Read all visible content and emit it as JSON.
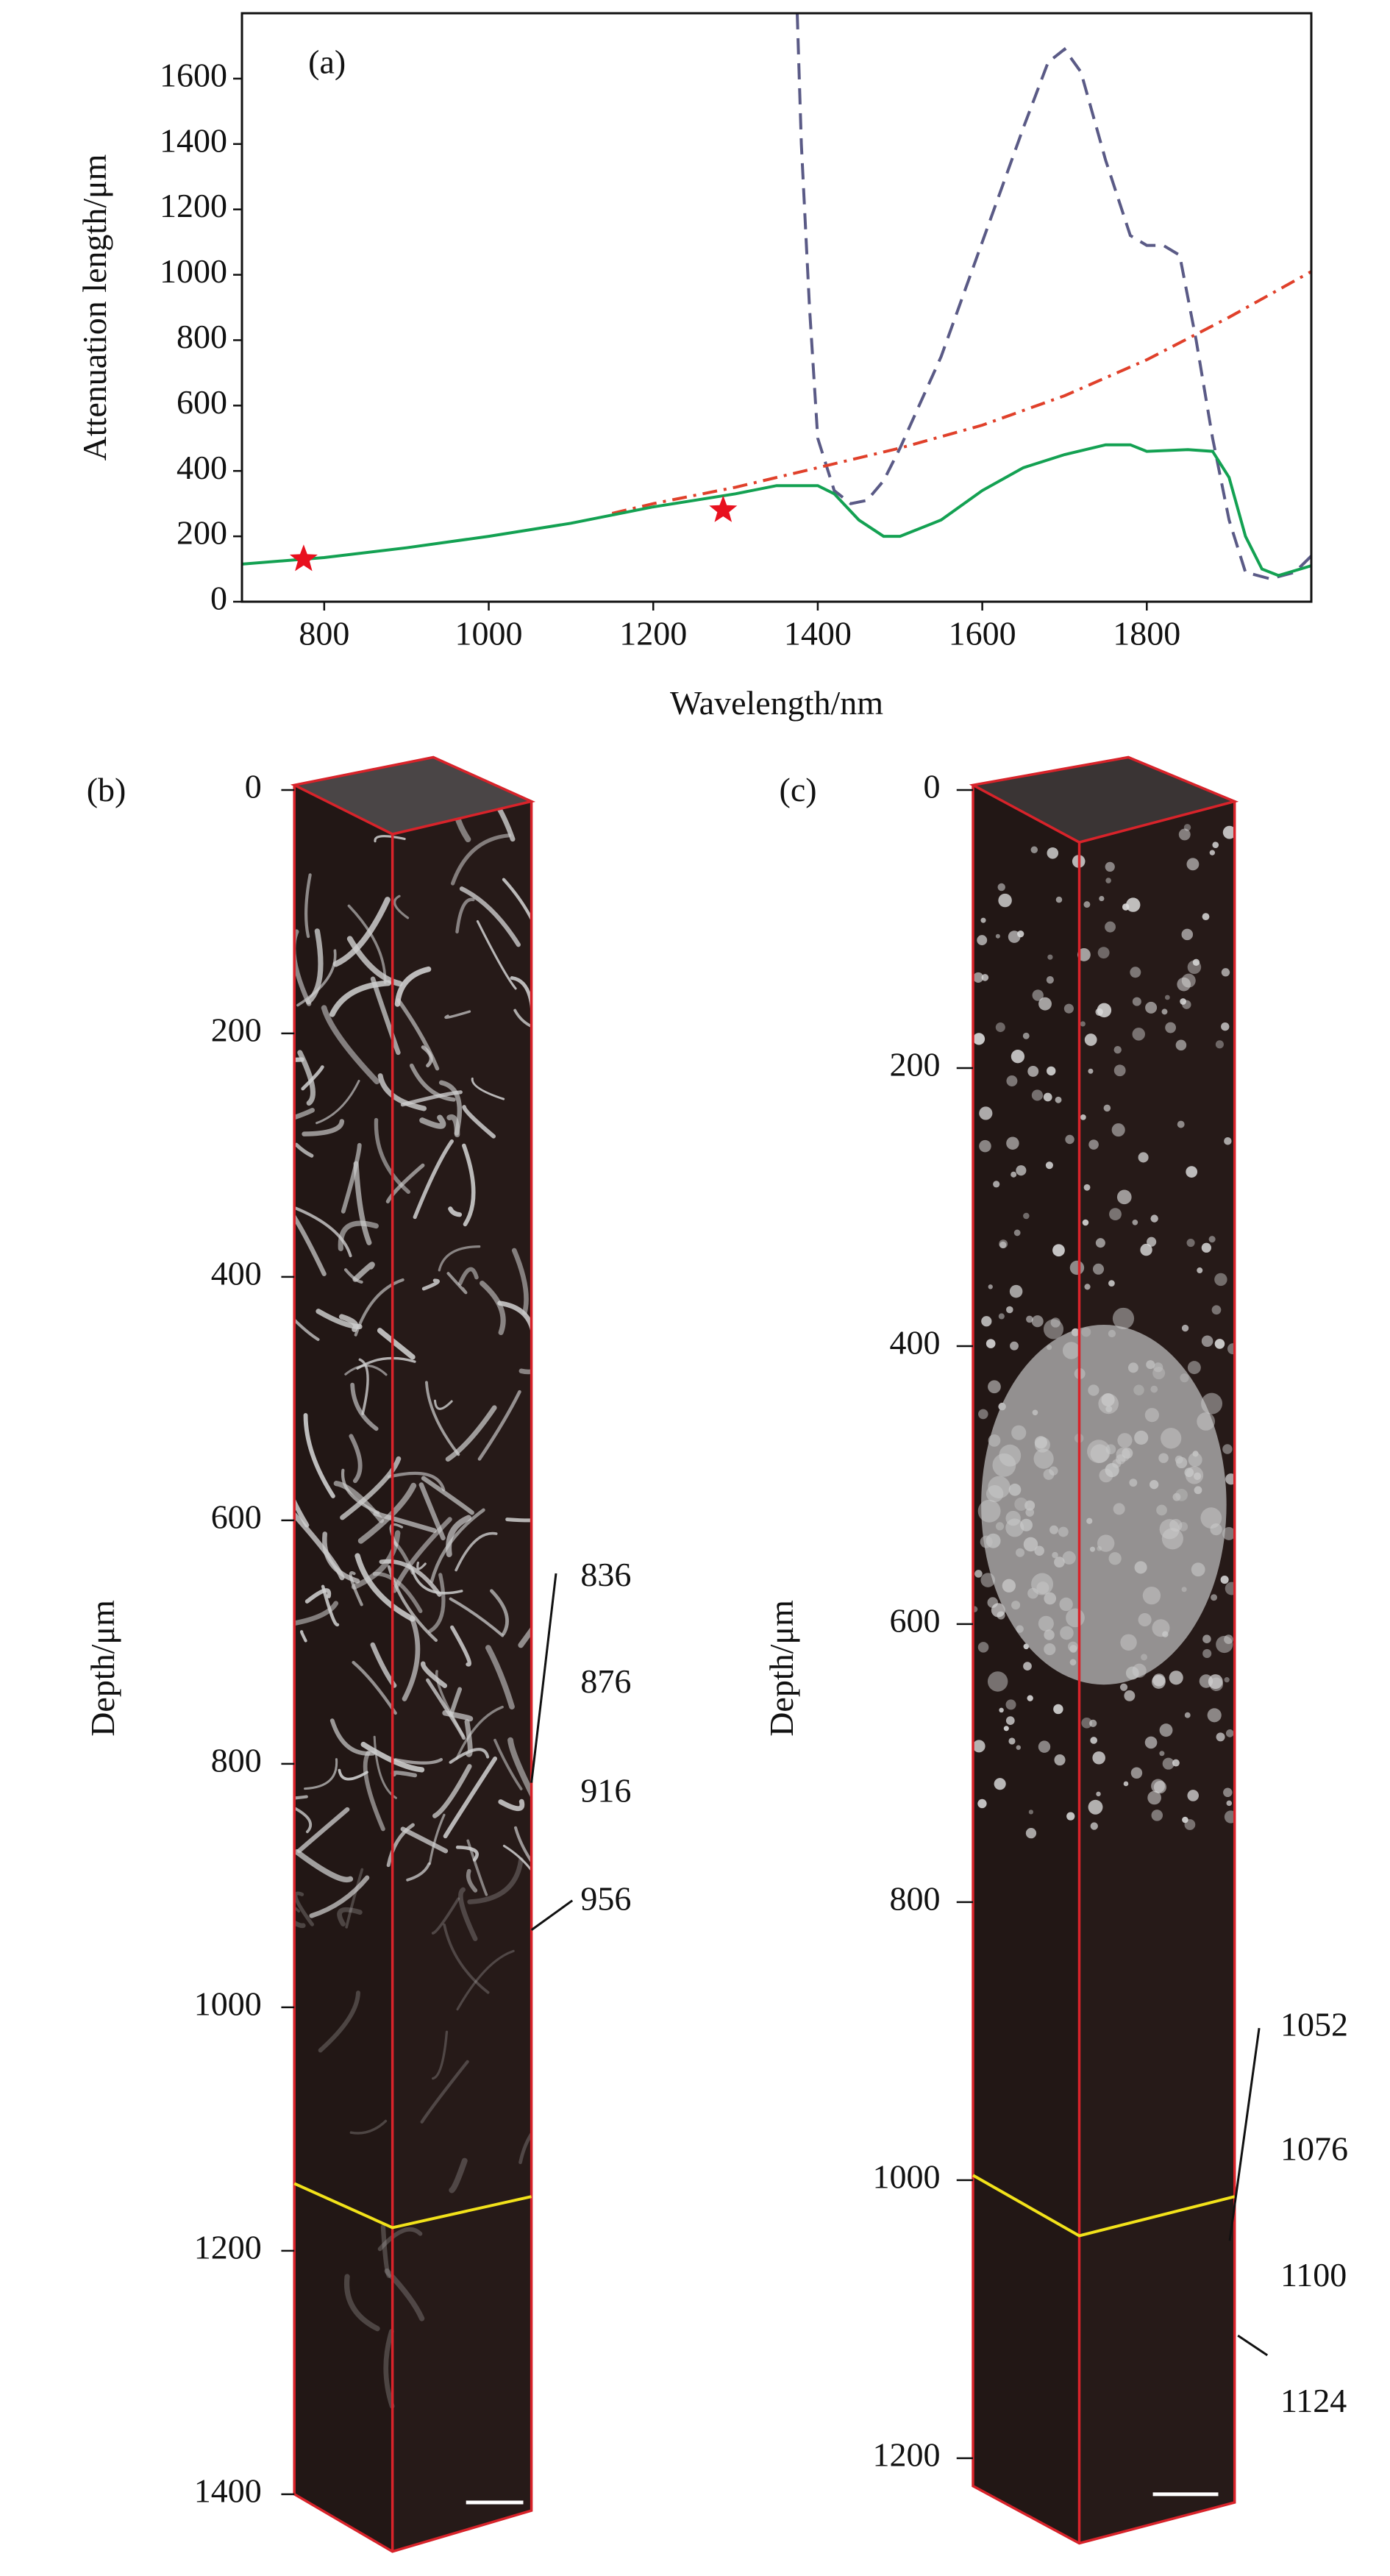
{
  "chart_data": [
    {
      "type": "line",
      "label": "(a)",
      "xlabel": "Wavelength/nm",
      "ylabel": "Attenuation length/μm",
      "xlim": [
        700,
        2000
      ],
      "ylim": [
        0,
        1800
      ],
      "xticks": [
        800,
        1000,
        1200,
        1400,
        1600,
        1800
      ],
      "yticks": [
        0,
        200,
        400,
        600,
        800,
        1000,
        1200,
        1400,
        1600
      ],
      "series": [
        {
          "color": "#5a5a86",
          "linestyle": "dashed",
          "x": [
            1375,
            1380,
            1390,
            1400,
            1420,
            1440,
            1460,
            1480,
            1500,
            1550,
            1600,
            1650,
            1680,
            1700,
            1720,
            1750,
            1780,
            1800,
            1820,
            1840,
            1860,
            1880,
            1900,
            1920,
            1950,
            1980,
            2000
          ],
          "values": [
            1800,
            1400,
            900,
            500,
            340,
            300,
            310,
            370,
            470,
            750,
            1100,
            1450,
            1650,
            1690,
            1620,
            1350,
            1120,
            1090,
            1090,
            1060,
            800,
            500,
            250,
            90,
            70,
            90,
            140
          ]
        },
        {
          "color": "#e0402a",
          "linestyle": "dashdot",
          "x": [
            1150,
            1200,
            1300,
            1400,
            1500,
            1600,
            1700,
            1800,
            1900,
            2000
          ],
          "values": [
            270,
            300,
            350,
            410,
            470,
            540,
            630,
            740,
            870,
            1010
          ]
        },
        {
          "color": "#13a152",
          "linestyle": "solid",
          "x": [
            700,
            800,
            900,
            1000,
            1100,
            1200,
            1300,
            1350,
            1400,
            1420,
            1450,
            1480,
            1500,
            1550,
            1600,
            1650,
            1700,
            1750,
            1780,
            1800,
            1850,
            1880,
            1900,
            1920,
            1940,
            1960,
            2000
          ],
          "values": [
            115,
            135,
            165,
            200,
            240,
            290,
            330,
            355,
            355,
            330,
            250,
            200,
            200,
            250,
            340,
            410,
            450,
            480,
            480,
            460,
            465,
            460,
            380,
            200,
            100,
            80,
            110
          ]
        },
        {
          "color": "#e8101e",
          "marker": "star",
          "x": [
            775,
            1285
          ],
          "values": [
            130,
            280
          ]
        }
      ]
    },
    {
      "type": "volume",
      "label": "(b)",
      "ylabel": "Depth/μm",
      "ylim": [
        0,
        1400
      ],
      "yticks": [
        0,
        200,
        400,
        600,
        800,
        1000,
        1200,
        1400
      ],
      "annotations": [
        836,
        876,
        916,
        956
      ]
    },
    {
      "type": "volume",
      "label": "(c)",
      "ylabel": "Depth/μm",
      "ylim": [
        0,
        1200
      ],
      "yticks": [
        0,
        200,
        400,
        600,
        800,
        1000,
        1200
      ],
      "annotations": [
        1052,
        1076,
        1100,
        1124
      ]
    }
  ]
}
